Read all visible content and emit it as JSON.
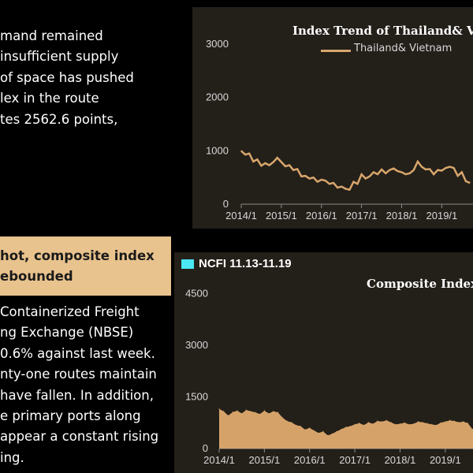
{
  "text": {
    "para1": [
      "mand remained",
      "insufficient supply",
      "of space has pushed",
      "lex in the route",
      "tes 2562.6 points,"
    ],
    "highlight": [
      "hot, composite index",
      "ebounded"
    ],
    "para2": [
      "Containerized Freight",
      "ng Exchange (NBSE)",
      "0.6% against last week.",
      "nty-one routes maintain",
      "have fallen. In addition,",
      "e primary ports along",
      "appear a constant rising",
      "ing."
    ]
  },
  "ncfi_label": "NCFI 11.13-11.19",
  "colors": {
    "series1": "#d8a66c",
    "series2_fill": "#d5a36a",
    "ncfi_box": "#4ae8f2",
    "highlight_bg": "#e9c38d"
  },
  "chart_data": [
    {
      "type": "line",
      "title": "Index Trend of Thailand& Vie",
      "legend": "Thailand& Vietnam",
      "series": [
        {
          "name": "Thailand& Vietnam",
          "x": [
            2014.0,
            2014.1,
            2014.2,
            2014.3,
            2014.4,
            2014.5,
            2014.6,
            2014.7,
            2014.8,
            2014.9,
            2015.0,
            2015.1,
            2015.2,
            2015.3,
            2015.4,
            2015.5,
            2015.6,
            2015.7,
            2015.8,
            2015.9,
            2016.0,
            2016.1,
            2016.2,
            2016.3,
            2016.4,
            2016.5,
            2016.6,
            2016.7,
            2016.8,
            2016.9,
            2017.0,
            2017.1,
            2017.2,
            2017.3,
            2017.4,
            2017.5,
            2017.6,
            2017.7,
            2017.8,
            2017.9,
            2018.0,
            2018.1,
            2018.2,
            2018.3,
            2018.4,
            2018.5,
            2018.6,
            2018.7,
            2018.8,
            2018.9,
            2019.0,
            2019.1,
            2019.2,
            2019.3,
            2019.4,
            2019.5,
            2019.6,
            2019.7
          ],
          "values": [
            1000,
            930,
            950,
            800,
            840,
            720,
            770,
            730,
            790,
            870,
            790,
            710,
            730,
            640,
            660,
            520,
            530,
            480,
            500,
            420,
            460,
            440,
            380,
            400,
            310,
            330,
            290,
            270,
            420,
            380,
            560,
            480,
            520,
            600,
            560,
            650,
            580,
            640,
            670,
            620,
            600,
            560,
            580,
            640,
            800,
            700,
            650,
            660,
            560,
            640,
            630,
            680,
            700,
            680,
            530,
            600,
            430,
            400
          ]
        }
      ],
      "y_ticks": [
        0,
        1000,
        2000,
        3000
      ],
      "x_ticks": [
        "2014/1",
        "2015/1",
        "2016/1",
        "2017/1",
        "2018/1",
        "2019/1"
      ],
      "xlim": [
        2014.0,
        2019.7
      ],
      "ylim": [
        0,
        3400
      ]
    },
    {
      "type": "area",
      "title": "Composite Index",
      "series": [
        {
          "name": "",
          "x": [
            2014.0,
            2014.1,
            2014.2,
            2014.3,
            2014.4,
            2014.5,
            2014.6,
            2014.7,
            2014.8,
            2014.9,
            2015.0,
            2015.1,
            2015.2,
            2015.3,
            2015.4,
            2015.5,
            2015.6,
            2015.7,
            2015.8,
            2015.9,
            2016.0,
            2016.1,
            2016.2,
            2016.3,
            2016.4,
            2016.5,
            2016.6,
            2016.7,
            2016.8,
            2016.9,
            2017.0,
            2017.1,
            2017.2,
            2017.3,
            2017.4,
            2017.5,
            2017.6,
            2017.7,
            2017.8,
            2017.9,
            2018.0,
            2018.1,
            2018.2,
            2018.3,
            2018.4,
            2018.5,
            2018.6,
            2018.7,
            2018.8,
            2018.9,
            2019.0,
            2019.1,
            2019.2,
            2019.3,
            2019.4,
            2019.5,
            2019.6,
            2019.7
          ],
          "values": [
            1150,
            1080,
            960,
            1060,
            1100,
            1020,
            1120,
            1080,
            1050,
            1000,
            1100,
            1020,
            1080,
            1050,
            900,
            800,
            760,
            680,
            650,
            550,
            600,
            520,
            450,
            500,
            380,
            430,
            500,
            560,
            620,
            650,
            700,
            740,
            680,
            760,
            720,
            800,
            780,
            820,
            760,
            700,
            720,
            750,
            700,
            720,
            780,
            760,
            730,
            700,
            680,
            750,
            780,
            820,
            800,
            760,
            780,
            740,
            560,
            700
          ]
        }
      ],
      "y_ticks": [
        0,
        1500,
        3000,
        4500
      ],
      "x_ticks": [
        "2014/1",
        "2015/1",
        "2016/1",
        "2017/1",
        "2018/1",
        "2019/1"
      ],
      "xlim": [
        2014.0,
        2019.7
      ],
      "ylim": [
        0,
        4900
      ]
    }
  ]
}
